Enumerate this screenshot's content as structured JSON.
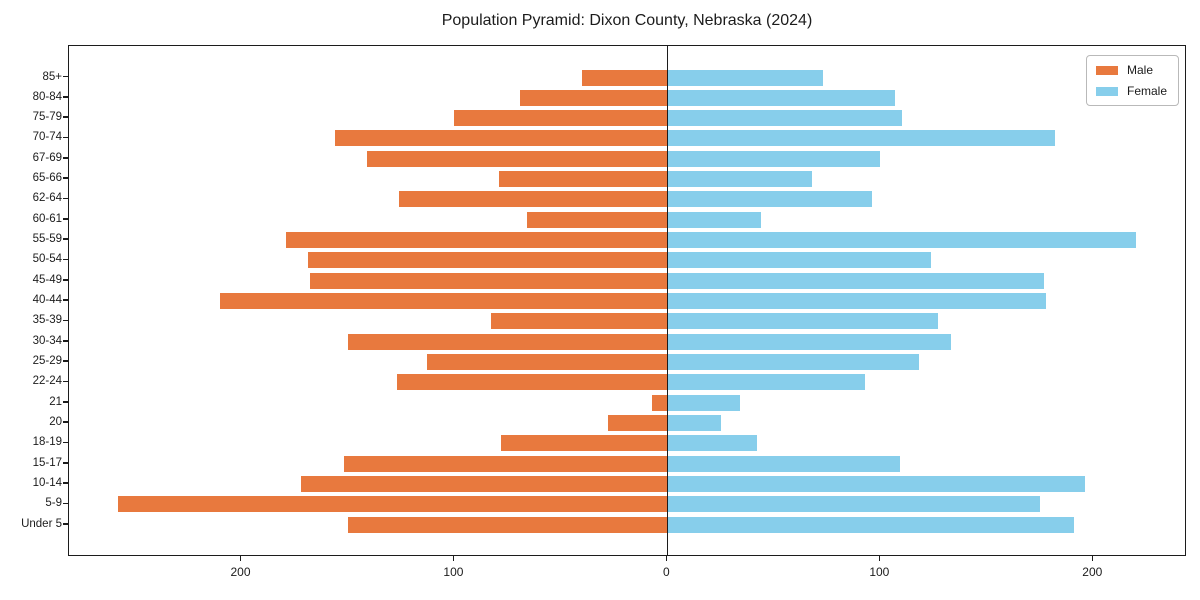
{
  "chart_data": {
    "type": "bar",
    "variant": "population-pyramid-horizontal",
    "title": "Population Pyramid: Dixon County, Nebraska (2024)",
    "categories": [
      "85+",
      "80-84",
      "75-79",
      "70-74",
      "67-69",
      "65-66",
      "62-64",
      "60-61",
      "55-59",
      "50-54",
      "45-49",
      "40-44",
      "35-39",
      "30-34",
      "25-29",
      "22-24",
      "21",
      "20",
      "18-19",
      "15-17",
      "10-14",
      "5-9",
      "Under 5"
    ],
    "series": [
      {
        "name": "Male",
        "color": "#e8793e",
        "direction": "left",
        "values": [
          40,
          69,
          100,
          156,
          141,
          79,
          126,
          66,
          179,
          169,
          168,
          210,
          83,
          150,
          113,
          127,
          7,
          28,
          78,
          152,
          172,
          258,
          150
        ]
      },
      {
        "name": "Female",
        "color": "#87ceeb",
        "direction": "right",
        "values": [
          73,
          107,
          110,
          182,
          100,
          68,
          96,
          44,
          220,
          124,
          177,
          178,
          127,
          133,
          118,
          93,
          34,
          25,
          42,
          109,
          196,
          175,
          191
        ]
      }
    ],
    "x_axis": {
      "xlim": [
        -281,
        244
      ],
      "tick_values": [
        -200,
        -100,
        0,
        100,
        200
      ],
      "tick_labels": [
        "200",
        "100",
        "0",
        "100",
        "200"
      ]
    },
    "y_axis": {
      "tick_labels": [
        "85+",
        "80-84",
        "75-79",
        "70-74",
        "67-69",
        "65-66",
        "62-64",
        "60-61",
        "55-59",
        "50-54",
        "45-49",
        "40-44",
        "35-39",
        "30-34",
        "25-29",
        "22-24",
        "21",
        "20",
        "18-19",
        "15-17",
        "10-14",
        "5-9",
        "Under 5"
      ]
    },
    "legend": {
      "position": "upper-right",
      "entries": [
        "Male",
        "Female"
      ]
    },
    "grid": false,
    "colors": {
      "male": "#e8793e",
      "female": "#87ceeb",
      "axis": "#1c1c1c",
      "background": "#ffffff"
    }
  }
}
